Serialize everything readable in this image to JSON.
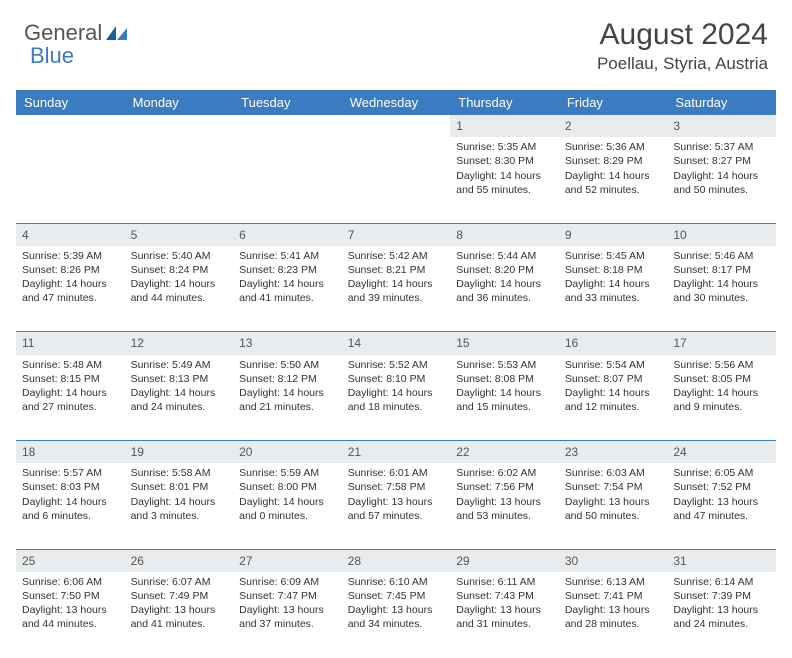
{
  "brand": {
    "name1": "General",
    "name2": "Blue"
  },
  "header": {
    "title": "August 2024",
    "location": "Poellau, Styria, Austria"
  },
  "colors": {
    "header_bg": "#3b7bbf",
    "header_text": "#ffffff",
    "daynum_bg": "#e9ecef",
    "cell_divider": "#3b7bbf",
    "text": "#333333",
    "brand_gray": "#555555",
    "brand_blue": "#3b7bbf"
  },
  "daysOfWeek": [
    "Sunday",
    "Monday",
    "Tuesday",
    "Wednesday",
    "Thursday",
    "Friday",
    "Saturday"
  ],
  "weeks": [
    [
      null,
      null,
      null,
      null,
      {
        "n": "1",
        "sr": "5:35 AM",
        "ss": "8:30 PM",
        "dl": "14 hours and 55 minutes."
      },
      {
        "n": "2",
        "sr": "5:36 AM",
        "ss": "8:29 PM",
        "dl": "14 hours and 52 minutes."
      },
      {
        "n": "3",
        "sr": "5:37 AM",
        "ss": "8:27 PM",
        "dl": "14 hours and 50 minutes."
      }
    ],
    [
      {
        "n": "4",
        "sr": "5:39 AM",
        "ss": "8:26 PM",
        "dl": "14 hours and 47 minutes."
      },
      {
        "n": "5",
        "sr": "5:40 AM",
        "ss": "8:24 PM",
        "dl": "14 hours and 44 minutes."
      },
      {
        "n": "6",
        "sr": "5:41 AM",
        "ss": "8:23 PM",
        "dl": "14 hours and 41 minutes."
      },
      {
        "n": "7",
        "sr": "5:42 AM",
        "ss": "8:21 PM",
        "dl": "14 hours and 39 minutes."
      },
      {
        "n": "8",
        "sr": "5:44 AM",
        "ss": "8:20 PM",
        "dl": "14 hours and 36 minutes."
      },
      {
        "n": "9",
        "sr": "5:45 AM",
        "ss": "8:18 PM",
        "dl": "14 hours and 33 minutes."
      },
      {
        "n": "10",
        "sr": "5:46 AM",
        "ss": "8:17 PM",
        "dl": "14 hours and 30 minutes."
      }
    ],
    [
      {
        "n": "11",
        "sr": "5:48 AM",
        "ss": "8:15 PM",
        "dl": "14 hours and 27 minutes."
      },
      {
        "n": "12",
        "sr": "5:49 AM",
        "ss": "8:13 PM",
        "dl": "14 hours and 24 minutes."
      },
      {
        "n": "13",
        "sr": "5:50 AM",
        "ss": "8:12 PM",
        "dl": "14 hours and 21 minutes."
      },
      {
        "n": "14",
        "sr": "5:52 AM",
        "ss": "8:10 PM",
        "dl": "14 hours and 18 minutes."
      },
      {
        "n": "15",
        "sr": "5:53 AM",
        "ss": "8:08 PM",
        "dl": "14 hours and 15 minutes."
      },
      {
        "n": "16",
        "sr": "5:54 AM",
        "ss": "8:07 PM",
        "dl": "14 hours and 12 minutes."
      },
      {
        "n": "17",
        "sr": "5:56 AM",
        "ss": "8:05 PM",
        "dl": "14 hours and 9 minutes."
      }
    ],
    [
      {
        "n": "18",
        "sr": "5:57 AM",
        "ss": "8:03 PM",
        "dl": "14 hours and 6 minutes."
      },
      {
        "n": "19",
        "sr": "5:58 AM",
        "ss": "8:01 PM",
        "dl": "14 hours and 3 minutes."
      },
      {
        "n": "20",
        "sr": "5:59 AM",
        "ss": "8:00 PM",
        "dl": "14 hours and 0 minutes."
      },
      {
        "n": "21",
        "sr": "6:01 AM",
        "ss": "7:58 PM",
        "dl": "13 hours and 57 minutes."
      },
      {
        "n": "22",
        "sr": "6:02 AM",
        "ss": "7:56 PM",
        "dl": "13 hours and 53 minutes."
      },
      {
        "n": "23",
        "sr": "6:03 AM",
        "ss": "7:54 PM",
        "dl": "13 hours and 50 minutes."
      },
      {
        "n": "24",
        "sr": "6:05 AM",
        "ss": "7:52 PM",
        "dl": "13 hours and 47 minutes."
      }
    ],
    [
      {
        "n": "25",
        "sr": "6:06 AM",
        "ss": "7:50 PM",
        "dl": "13 hours and 44 minutes."
      },
      {
        "n": "26",
        "sr": "6:07 AM",
        "ss": "7:49 PM",
        "dl": "13 hours and 41 minutes."
      },
      {
        "n": "27",
        "sr": "6:09 AM",
        "ss": "7:47 PM",
        "dl": "13 hours and 37 minutes."
      },
      {
        "n": "28",
        "sr": "6:10 AM",
        "ss": "7:45 PM",
        "dl": "13 hours and 34 minutes."
      },
      {
        "n": "29",
        "sr": "6:11 AM",
        "ss": "7:43 PM",
        "dl": "13 hours and 31 minutes."
      },
      {
        "n": "30",
        "sr": "6:13 AM",
        "ss": "7:41 PM",
        "dl": "13 hours and 28 minutes."
      },
      {
        "n": "31",
        "sr": "6:14 AM",
        "ss": "7:39 PM",
        "dl": "13 hours and 24 minutes."
      }
    ]
  ],
  "labels": {
    "sunrise": "Sunrise: ",
    "sunset": "Sunset: ",
    "daylight": "Daylight: "
  }
}
